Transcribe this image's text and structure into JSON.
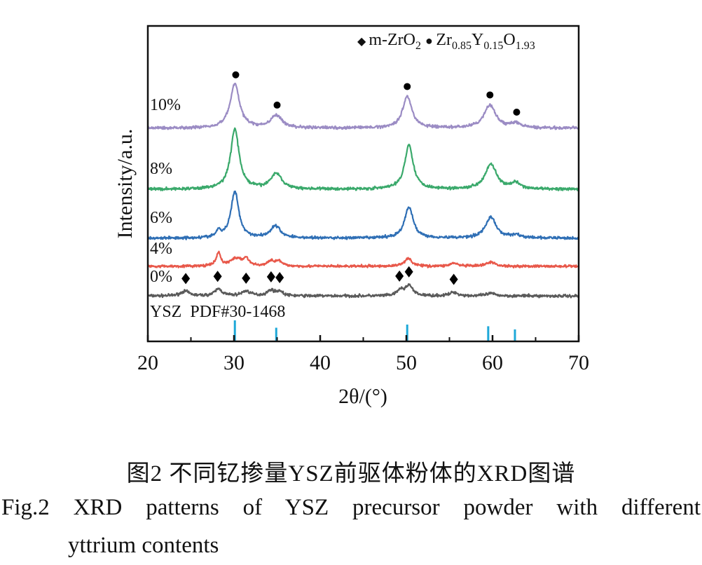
{
  "chart_data": {
    "type": "line",
    "title": "",
    "xlabel": "2θ/(°)",
    "ylabel": "Intensity/a.u.",
    "xlim": [
      20,
      70
    ],
    "ylim": [
      0,
      100
    ],
    "xticks": [
      20,
      30,
      40,
      50,
      60,
      70
    ],
    "xticks_minor": [
      25,
      35,
      45,
      55,
      65
    ],
    "legend": {
      "placement": "top-right",
      "entries": [
        {
          "marker": "diamond",
          "parts": [
            {
              "t": "m-ZrO"
            },
            {
              "t": "2",
              "sub": true
            }
          ]
        },
        {
          "marker": "circle",
          "parts": [
            {
              "t": "Zr"
            },
            {
              "t": "0.85",
              "sub": true
            },
            {
              "t": "Y"
            },
            {
              "t": "0.15",
              "sub": true
            },
            {
              "t": "O"
            },
            {
              "t": "1.93",
              "sub": true
            }
          ]
        }
      ]
    },
    "series": [
      {
        "name": "0%",
        "color": "#5a5a5a",
        "baseline": 14.4,
        "noise": 0.45,
        "peaks": [
          [
            24.3,
            1.5,
            1.2
          ],
          [
            28.2,
            2.2,
            1.0
          ],
          [
            31.4,
            1.5,
            1.2
          ],
          [
            34.3,
            1.8,
            1.0
          ],
          [
            35.3,
            1.4,
            0.8
          ],
          [
            49.3,
            1.8,
            0.8
          ],
          [
            50.3,
            3.4,
            1.0
          ],
          [
            55.5,
            1.2,
            1.0
          ],
          [
            59.8,
            0.8,
            1.2
          ]
        ]
      },
      {
        "name": "4%",
        "color": "#e8584a",
        "baseline": 23.8,
        "noise": 0.4,
        "peaks": [
          [
            28.2,
            4.2,
            0.6
          ],
          [
            30.2,
            2.4,
            1.5
          ],
          [
            31.4,
            2.3,
            0.8
          ],
          [
            34.3,
            1.8,
            0.8
          ],
          [
            35.2,
            1.6,
            0.8
          ],
          [
            50.2,
            2.6,
            1.0
          ],
          [
            55.5,
            1.0,
            1.0
          ],
          [
            59.8,
            1.3,
            1.2
          ]
        ]
      },
      {
        "name": "6%",
        "color": "#2f6fb5",
        "baseline": 32.7,
        "noise": 0.45,
        "peaks": [
          [
            28.2,
            2.0,
            0.6
          ],
          [
            30.1,
            14.8,
            1.1
          ],
          [
            34.8,
            3.8,
            1.4
          ],
          [
            50.3,
            9.8,
            1.2
          ],
          [
            59.8,
            6.6,
            1.5
          ],
          [
            62.7,
            1.0,
            1.2
          ]
        ]
      },
      {
        "name": "8%",
        "color": "#3aa96b",
        "baseline": 48.2,
        "noise": 0.45,
        "peaks": [
          [
            30.1,
            19.0,
            1.2
          ],
          [
            34.9,
            5.0,
            1.5
          ],
          [
            50.3,
            14.0,
            1.2
          ],
          [
            59.8,
            8.0,
            1.6
          ],
          [
            62.7,
            1.8,
            1.2
          ]
        ]
      },
      {
        "name": "10%",
        "color": "#9b8cc4",
        "baseline": 67.6,
        "noise": 0.45,
        "peaks": [
          [
            30.1,
            14.0,
            1.3
          ],
          [
            34.9,
            4.0,
            1.5
          ],
          [
            50.1,
            10.0,
            1.3
          ],
          [
            59.7,
            7.3,
            1.6
          ],
          [
            62.7,
            1.5,
            1.2
          ]
        ]
      }
    ],
    "markers": {
      "diamond_0pct": [
        24.4,
        28.1,
        31.4,
        34.3,
        35.3,
        49.2,
        50.3,
        55.5
      ],
      "circle_10pct": [
        30.2,
        35.0,
        50.1,
        59.7,
        62.8
      ]
    },
    "reference": {
      "label": "YSZ  PDF#30-1468",
      "color": "#1ea8d8",
      "lines": [
        [
          30.1,
          100
        ],
        [
          34.9,
          65
        ],
        [
          50.1,
          80
        ],
        [
          59.5,
          72
        ],
        [
          62.6,
          57
        ]
      ]
    }
  },
  "caption": {
    "cn": "图2  不同钇掺量YSZ前驱体粉体的XRD图谱",
    "en_line1": "Fig.2 XRD patterns of YSZ precursor powder with different",
    "en_line2": "yttrium contents"
  }
}
